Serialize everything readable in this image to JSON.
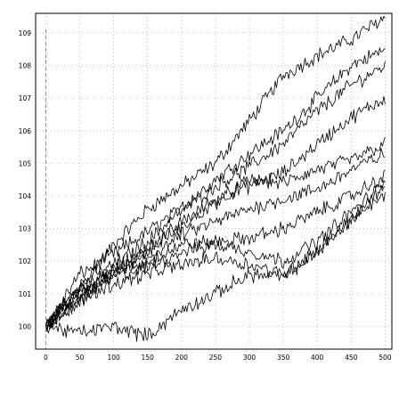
{
  "chart_data": {
    "type": "line",
    "title": "",
    "xlabel": "",
    "ylabel": "",
    "xlim": [
      -15,
      510
    ],
    "ylim": [
      99.3,
      109.6
    ],
    "x_ticks": [
      0,
      50,
      100,
      150,
      200,
      250,
      300,
      350,
      400,
      450,
      500
    ],
    "y_ticks": [
      100,
      101,
      102,
      103,
      104,
      105,
      106,
      107,
      108,
      109
    ],
    "grid": true,
    "reference_line_x": 0,
    "series_anchor_x": [
      0,
      50,
      100,
      150,
      200,
      250,
      300,
      350,
      400,
      450,
      500
    ],
    "series": [
      {
        "values": [
          100.0,
          101.2,
          102.5,
          103.6,
          104.3,
          105.0,
          106.3,
          107.7,
          108.3,
          108.8,
          109.5
        ]
      },
      {
        "values": [
          100.0,
          101.6,
          102.2,
          102.9,
          103.6,
          104.5,
          105.3,
          106.0,
          107.0,
          108.0,
          108.5
        ]
      },
      {
        "values": [
          100.0,
          101.3,
          101.9,
          102.6,
          103.6,
          104.3,
          104.9,
          105.6,
          106.6,
          107.4,
          108.0
        ]
      },
      {
        "values": [
          100.0,
          100.9,
          101.8,
          102.3,
          103.2,
          103.9,
          104.3,
          104.7,
          105.6,
          106.4,
          107.0
        ]
      },
      {
        "values": [
          100.0,
          101.0,
          101.6,
          102.4,
          103.0,
          103.8,
          104.5,
          104.4,
          104.8,
          105.1,
          105.6
        ]
      },
      {
        "values": [
          100.0,
          101.1,
          101.7,
          102.1,
          102.8,
          103.2,
          103.6,
          103.9,
          104.2,
          104.8,
          105.3
        ]
      },
      {
        "values": [
          100.0,
          100.8,
          101.6,
          102.0,
          102.5,
          102.6,
          102.7,
          103.0,
          103.5,
          104.0,
          104.6
        ]
      },
      {
        "values": [
          100.0,
          101.1,
          101.5,
          101.8,
          102.3,
          102.5,
          102.3,
          102.0,
          102.6,
          103.5,
          104.4
        ]
      },
      {
        "values": [
          100.0,
          100.8,
          101.3,
          101.6,
          101.9,
          102.1,
          101.9,
          101.6,
          102.3,
          103.3,
          104.3
        ]
      },
      {
        "values": [
          100.0,
          99.8,
          100.0,
          99.7,
          100.5,
          101.0,
          101.6,
          101.5,
          102.3,
          103.3,
          104.0
        ]
      }
    ]
  }
}
